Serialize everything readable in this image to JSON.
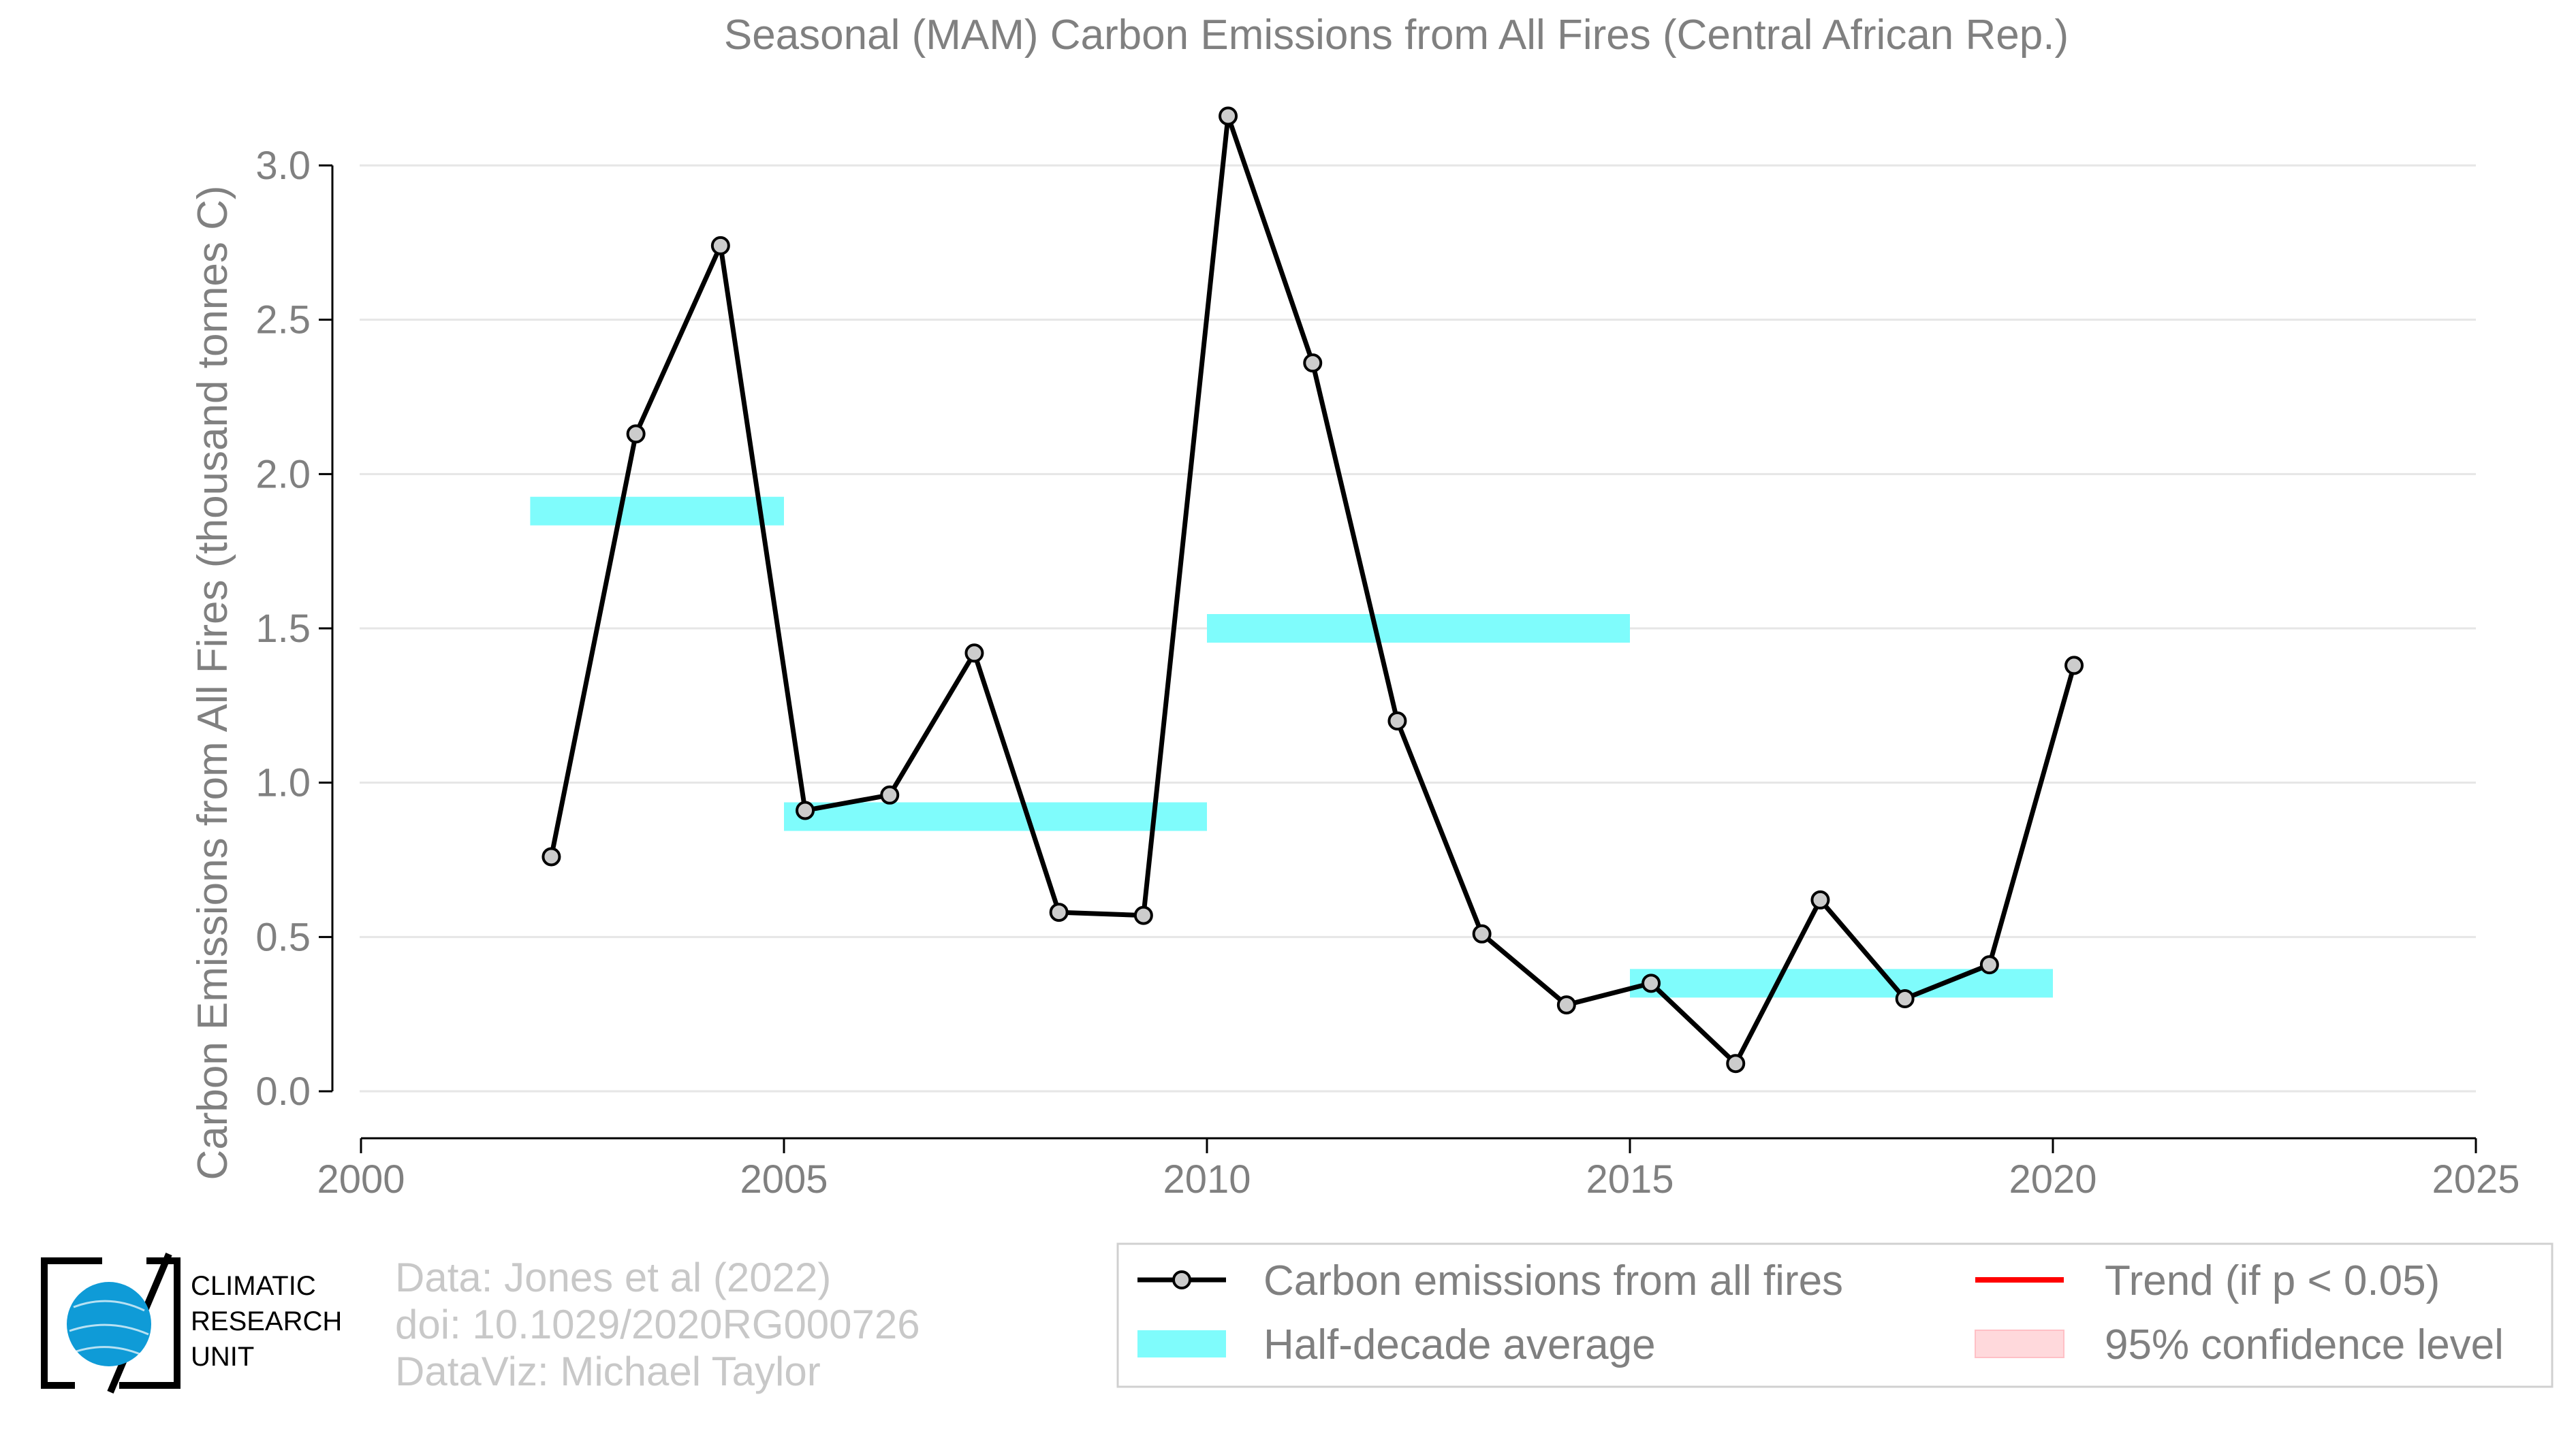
{
  "chart_data": {
    "type": "line",
    "title": "Seasonal (MAM) Carbon Emissions from All Fires (Central African Rep.)",
    "xlabel": "",
    "ylabel": "Carbon Emissions from All Fires (thousand tonnes C)",
    "xlim": [
      2000,
      2025
    ],
    "ylim": [
      0.0,
      3.2
    ],
    "x_ticks": [
      2000,
      2005,
      2010,
      2015,
      2020,
      2025
    ],
    "y_ticks": [
      0.0,
      0.5,
      1.0,
      1.5,
      2.0,
      2.5,
      3.0
    ],
    "y_tick_labels": [
      "0.0",
      "0.5",
      "1.0",
      "1.5",
      "2.0",
      "2.5",
      "3.0"
    ],
    "grid": "horizontal",
    "series": [
      {
        "name": "Carbon emissions from all fires",
        "x": [
          2002.25,
          2003.25,
          2004.25,
          2005.25,
          2006.25,
          2007.25,
          2008.25,
          2009.25,
          2010.25,
          2011.25,
          2012.25,
          2013.25,
          2014.25,
          2015.25,
          2016.25,
          2017.25,
          2018.25,
          2019.25,
          2020.25
        ],
        "values": [
          0.76,
          2.13,
          2.74,
          0.91,
          0.96,
          1.42,
          0.58,
          0.57,
          3.16,
          2.36,
          1.2,
          0.51,
          0.28,
          0.35,
          0.09,
          0.62,
          0.3,
          0.41,
          1.38
        ],
        "color": "#000000"
      }
    ],
    "half_decade_average": {
      "name": "Half-decade average",
      "color": "#7ffcfc",
      "segments": [
        {
          "x_start": 2002,
          "x_end": 2005,
          "value": 1.88
        },
        {
          "x_start": 2005,
          "x_end": 2010,
          "value": 0.89
        },
        {
          "x_start": 2010,
          "x_end": 2015,
          "value": 1.5
        },
        {
          "x_start": 2015,
          "x_end": 2020,
          "value": 0.35
        }
      ]
    },
    "legend": {
      "placement": "bottom-right",
      "entries": [
        {
          "label": "Carbon emissions from all fires",
          "color": "#000000",
          "marker": "line-circle"
        },
        {
          "label": "Trend (if p < 0.05)",
          "color": "#ff0000",
          "marker": "line"
        },
        {
          "label": "Half-decade average",
          "color": "#7ffcfc",
          "marker": "patch"
        },
        {
          "label": "95% confidence level",
          "color": "#ffd9dc",
          "marker": "patch"
        }
      ]
    }
  },
  "credits": {
    "logo_lines": [
      "CLIMATIC",
      "RESEARCH",
      "UNIT"
    ],
    "lines": [
      "Data: Jones et al (2022)",
      "doi: 10.1029/2020RG000726",
      "DataViz: Michael Taylor"
    ]
  },
  "colors": {
    "title": "#808080",
    "axis_text": "#808080",
    "grid": "#e6e6e6",
    "credit_text": "#c8c8c8",
    "logo_blue": "#0f9bd7",
    "marker_fill": "#cccccc"
  }
}
